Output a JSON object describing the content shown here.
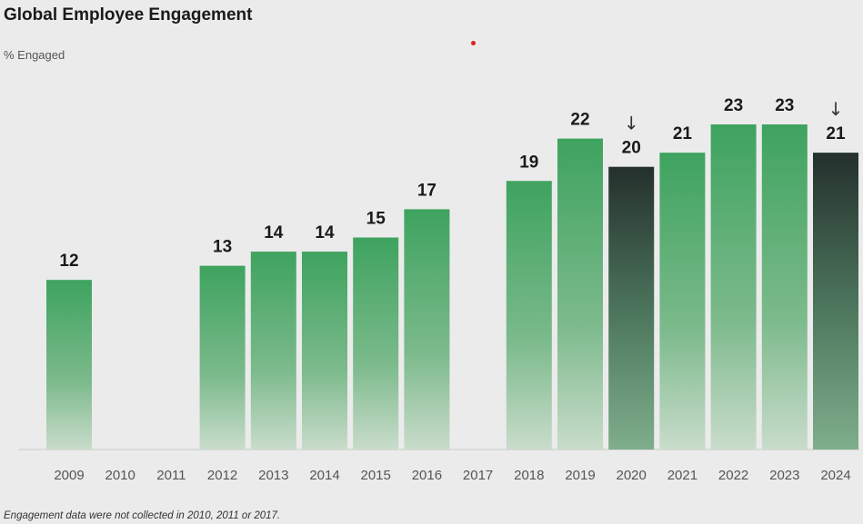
{
  "title": "Global Employee Engagement",
  "subtitle": "% Engaged",
  "footnote": "Engagement data were not collected in 2010, 2011 or 2017.",
  "colors": {
    "bar_green_top": "#3ea35f",
    "bar_green_bottom": "#c9dccb",
    "bar_dark_top": "#24302c",
    "bar_dark_bottom": "#7fae8c",
    "accent_dot": "#e02020"
  },
  "chart_data": {
    "type": "bar",
    "title": "Global Employee Engagement",
    "ylabel": "% Engaged",
    "categories": [
      "2009",
      "2010",
      "2011",
      "2012",
      "2013",
      "2014",
      "2015",
      "2016",
      "2017",
      "2018",
      "2019",
      "2020",
      "2021",
      "2022",
      "2023",
      "2024"
    ],
    "values": [
      12,
      null,
      null,
      13,
      14,
      14,
      15,
      17,
      null,
      19,
      22,
      20,
      21,
      23,
      23,
      21
    ],
    "decline_arrows": [
      "2020",
      "2024"
    ],
    "ylim": [
      0,
      23
    ],
    "grid": false,
    "legend": "none"
  }
}
